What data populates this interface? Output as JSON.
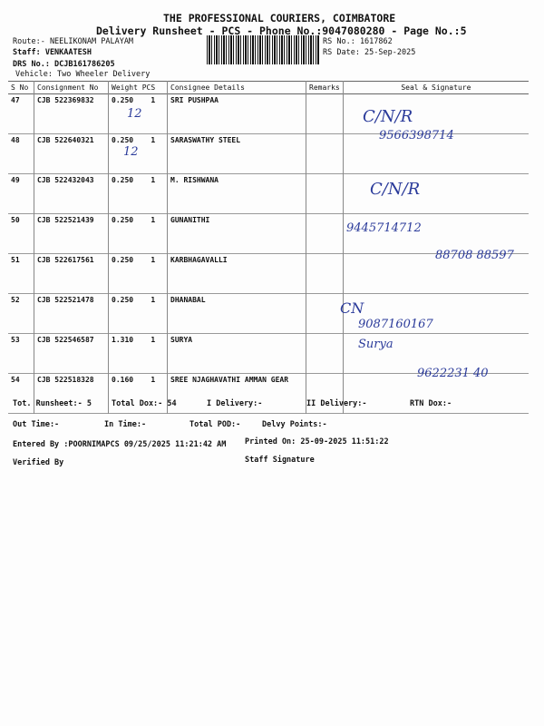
{
  "header": {
    "company": "THE PROFESSIONAL COURIERS, COIMBATORE",
    "subtitle": "Delivery Runsheet - PCS - Phone No.:9047080280 - Page No.:5",
    "route": "Route:- NEELIKONAM PALAYAM",
    "staff": "Staff: VENKAATESH",
    "drs": "DRS No.: DCJB161786205",
    "vehicle": "Vehicle: Two Wheeler Delivery",
    "rs_no": "RS No.: 1617862",
    "rs_date": "RS Date: 25-Sep-2025"
  },
  "table": {
    "columns": [
      "S No",
      "Consignment No",
      "Weight  PCS",
      "Consignee Details",
      "Remarks",
      "Seal & Signature"
    ],
    "rows": [
      {
        "sno": "47",
        "cn": "CJB 522369832",
        "wt": "0.250",
        "pcs": "1",
        "name": "SRI PUSHPAA"
      },
      {
        "sno": "48",
        "cn": "CJB 522640321",
        "wt": "0.250",
        "pcs": "1",
        "name": "SARASWATHY STEEL"
      },
      {
        "sno": "49",
        "cn": "CJB 522432043",
        "wt": "0.250",
        "pcs": "1",
        "name": "M. RISHWANA"
      },
      {
        "sno": "50",
        "cn": "CJB 522521439",
        "wt": "0.250",
        "pcs": "1",
        "name": "GUNANITHI"
      },
      {
        "sno": "51",
        "cn": "CJB 522617561",
        "wt": "0.250",
        "pcs": "1",
        "name": "KARBHAGAVALLI"
      },
      {
        "sno": "52",
        "cn": "CJB 522521478",
        "wt": "0.250",
        "pcs": "1",
        "name": "DHANABAL"
      },
      {
        "sno": "53",
        "cn": "CJB 522546587",
        "wt": "1.310",
        "pcs": "1",
        "name": "SURYA"
      },
      {
        "sno": "54",
        "cn": "CJB 522518328",
        "wt": "0.160",
        "pcs": "1",
        "name": "SREE NJAGHAVATHI AMMAN GEAR"
      }
    ]
  },
  "handwriting": {
    "r47": "C/N/R",
    "r47b": "12",
    "r48": "9566398714",
    "r48b": "12",
    "r49": "C/N/R",
    "r50": "9445714712",
    "r51": "88708 88597",
    "r52": "CN",
    "r53": "9087160167",
    "r53b": "Surya",
    "r54": "9622231 40"
  },
  "footer": {
    "tot_runsheet": "Tot. Runsheet:- 5",
    "total_dox": "Total Dox:-   54",
    "i_delivery": "I Delivery:-",
    "ii_delivery": "II Delivery:-",
    "rtn_dox": "RTN Dox:-",
    "out_time": "Out Time:-",
    "in_time": "In Time:-",
    "total_pod": "Total POD:-",
    "delvy_points": "Delvy Points:-",
    "entered_by": "Entered By :POORNIMAPCS 09/25/2025 11:21:42 AM",
    "printed_on": "Printed On: 25-09-2025 11:51:22",
    "verified_by": "Verified By",
    "staff_signature": "Staff Signature"
  }
}
